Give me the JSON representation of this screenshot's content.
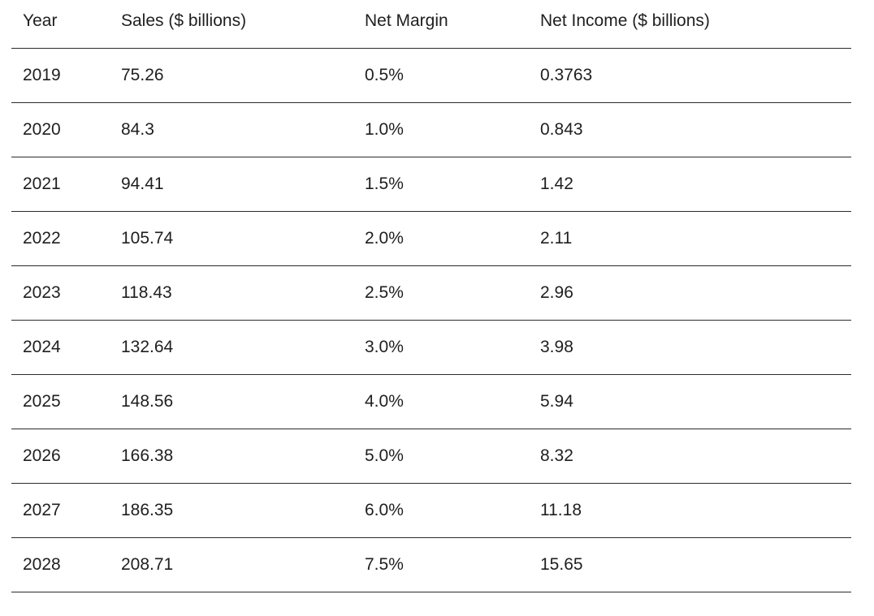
{
  "table": {
    "headers": [
      "Year",
      "Sales ($ billions)",
      "Net Margin",
      "Net Income ($ billions)"
    ],
    "rows": [
      [
        "2019",
        "75.26",
        "0.5%",
        "0.3763"
      ],
      [
        "2020",
        "84.3",
        "1.0%",
        "0.843"
      ],
      [
        "2021",
        "94.41",
        "1.5%",
        "1.42"
      ],
      [
        "2022",
        "105.74",
        "2.0%",
        "2.11"
      ],
      [
        "2023",
        "118.43",
        "2.5%",
        "2.96"
      ],
      [
        "2024",
        "132.64",
        "3.0%",
        "3.98"
      ],
      [
        "2025",
        "148.56",
        "4.0%",
        "5.94"
      ],
      [
        "2026",
        "166.38",
        "5.0%",
        "8.32"
      ],
      [
        "2027",
        "186.35",
        "6.0%",
        "11.18"
      ],
      [
        "2028",
        "208.71",
        "7.5%",
        "15.65"
      ]
    ]
  }
}
